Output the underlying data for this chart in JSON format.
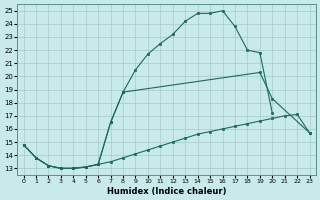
{
  "xlabel": "Humidex (Indice chaleur)",
  "bg_color": "#c8eaea",
  "grid_color": "#a8c8c8",
  "line_color": "#1a6b5a",
  "xlim": [
    -0.5,
    23.5
  ],
  "ylim": [
    12.5,
    25.5
  ],
  "xticks": [
    0,
    1,
    2,
    3,
    4,
    5,
    6,
    7,
    8,
    9,
    10,
    11,
    12,
    13,
    14,
    15,
    16,
    17,
    18,
    19,
    20,
    21,
    22,
    23
  ],
  "yticks": [
    13,
    14,
    15,
    16,
    17,
    18,
    19,
    20,
    21,
    22,
    23,
    24,
    25
  ],
  "line_bottom": {
    "x": [
      0,
      1,
      2,
      3,
      4,
      5,
      6,
      7,
      8,
      9,
      10,
      11,
      12,
      13,
      14,
      15,
      16,
      17,
      18,
      19,
      20,
      21,
      22,
      23
    ],
    "y": [
      14.8,
      13.8,
      13.2,
      13.0,
      13.0,
      13.1,
      13.3,
      13.5,
      13.8,
      14.1,
      14.4,
      14.7,
      15.0,
      15.3,
      15.6,
      15.8,
      16.0,
      16.2,
      16.4,
      16.6,
      16.8,
      17.0,
      17.1,
      15.7
    ]
  },
  "line_upper": {
    "x": [
      0,
      1,
      2,
      3,
      4,
      5,
      6,
      7,
      8,
      9,
      10,
      11,
      12,
      13,
      14,
      15,
      16,
      17,
      18,
      19,
      20
    ],
    "y": [
      14.8,
      13.8,
      13.2,
      13.0,
      13.0,
      13.1,
      13.3,
      16.5,
      18.8,
      20.5,
      21.7,
      22.5,
      23.2,
      24.2,
      24.8,
      24.8,
      25.0,
      23.8,
      22.0,
      21.8,
      17.2
    ]
  },
  "line_mid_seg1": {
    "x": [
      0,
      1,
      2,
      3,
      4,
      5,
      6,
      7,
      8
    ],
    "y": [
      14.8,
      13.8,
      13.2,
      13.0,
      13.0,
      13.1,
      13.3,
      16.5,
      18.8
    ]
  },
  "line_mid_seg2": {
    "x": [
      8,
      19,
      20,
      23
    ],
    "y": [
      18.8,
      20.3,
      18.3,
      15.7
    ]
  }
}
